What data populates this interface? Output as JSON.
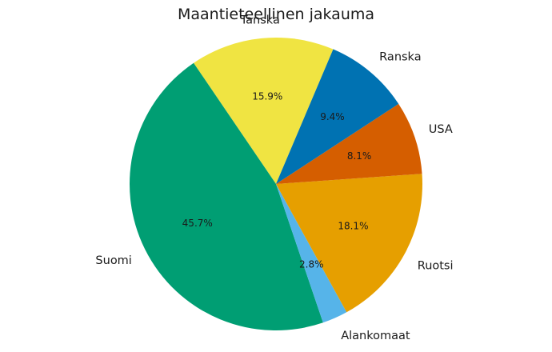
{
  "chart_data": {
    "type": "pie",
    "title": "Maantieteellinen jakauma",
    "slices": [
      {
        "label": "Tanska",
        "value": 15.9,
        "pct_label": "15.9%",
        "color": "#F0E442"
      },
      {
        "label": "Suomi",
        "value": 45.7,
        "pct_label": "45.7%",
        "color": "#009E73"
      },
      {
        "label": "Alankomaat",
        "value": 2.8,
        "pct_label": "2.8%",
        "color": "#56B4E9"
      },
      {
        "label": "Ruotsi",
        "value": 18.1,
        "pct_label": "18.1%",
        "color": "#E69F00"
      },
      {
        "label": "USA",
        "value": 8.1,
        "pct_label": "8.1%",
        "color": "#D55E00"
      },
      {
        "label": "Ranska",
        "value": 9.4,
        "pct_label": "9.4%",
        "color": "#0072B2"
      }
    ]
  }
}
